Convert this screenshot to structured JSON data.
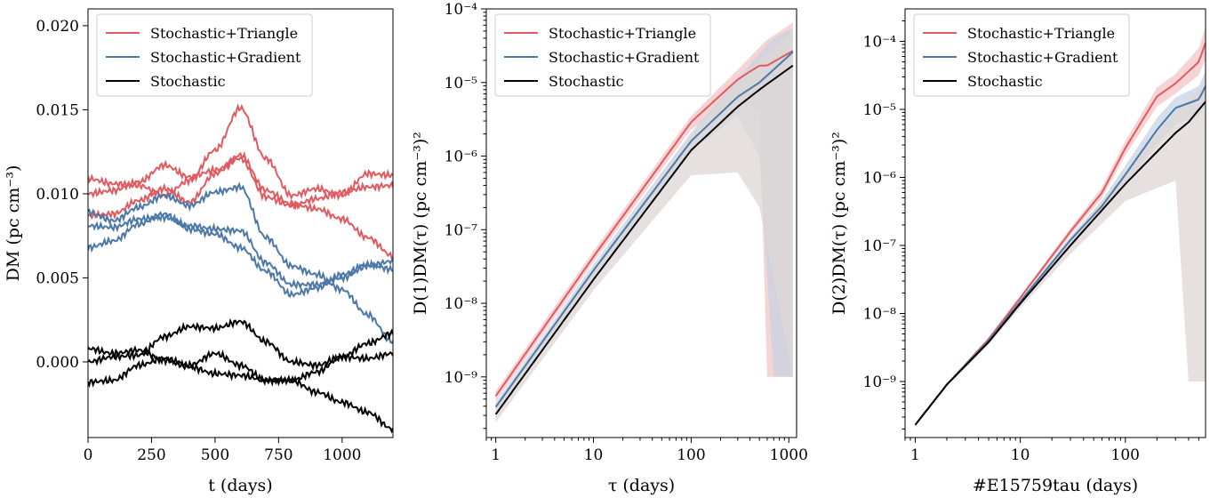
{
  "chart_data": [
    {
      "type": "line",
      "xlabel": "t (days)",
      "ylabel": "DM (pc cm⁻³)",
      "xlim": [
        0,
        1200
      ],
      "ylim": [
        -0.0045,
        0.021
      ],
      "xticks": [
        "0",
        "250",
        "500",
        "750",
        "1000"
      ],
      "yticks": [
        "0.000",
        "0.005",
        "0.010",
        "0.015",
        "0.020"
      ],
      "legend": {
        "position": "top-left",
        "entries": [
          "Stochastic+Triangle",
          "Stochastic+Gradient",
          "Stochastic"
        ]
      },
      "series": [
        {
          "name": "Stochastic+Triangle",
          "color": "#e05a5f",
          "x": [
            0,
            100,
            200,
            300,
            400,
            500,
            600,
            700,
            800,
            900,
            1000,
            1100,
            1200
          ],
          "values": [
            0.0087,
            0.0088,
            0.0096,
            0.0103,
            0.0095,
            0.0112,
            0.0123,
            0.0102,
            0.0094,
            0.0091,
            0.0085,
            0.0074,
            0.0063
          ]
        },
        {
          "name": "Stochastic+Triangle",
          "color": "#e05a5f",
          "x": [
            0,
            100,
            200,
            300,
            400,
            500,
            600,
            700,
            800,
            900,
            1000,
            1100,
            1200
          ],
          "values": [
            0.0109,
            0.0106,
            0.0105,
            0.0099,
            0.0108,
            0.0126,
            0.0151,
            0.0121,
            0.0099,
            0.0103,
            0.0099,
            0.0112,
            0.0111
          ]
        },
        {
          "name": "Stochastic+Triangle",
          "color": "#e05a5f",
          "x": [
            0,
            100,
            200,
            300,
            400,
            500,
            600,
            700,
            800,
            900,
            1000,
            1100,
            1200
          ],
          "values": [
            0.01,
            0.0102,
            0.0107,
            0.0117,
            0.011,
            0.0114,
            0.0121,
            0.0098,
            0.0093,
            0.0097,
            0.0101,
            0.0104,
            0.0105
          ]
        },
        {
          "name": "Stochastic+Gradient",
          "color": "#4c78a8",
          "x": [
            0,
            100,
            200,
            300,
            400,
            500,
            600,
            700,
            800,
            900,
            1000,
            1100,
            1200
          ],
          "values": [
            0.0089,
            0.0084,
            0.0092,
            0.0099,
            0.0093,
            0.0101,
            0.0104,
            0.0074,
            0.0057,
            0.0052,
            0.0043,
            0.0028,
            0.0012
          ]
        },
        {
          "name": "Stochastic+Gradient",
          "color": "#4c78a8",
          "x": [
            0,
            100,
            200,
            300,
            400,
            500,
            600,
            700,
            800,
            900,
            1000,
            1100,
            1200
          ],
          "values": [
            0.0081,
            0.008,
            0.0085,
            0.0086,
            0.0081,
            0.0079,
            0.0078,
            0.0059,
            0.0046,
            0.0046,
            0.005,
            0.0057,
            0.006
          ]
        },
        {
          "name": "Stochastic+Gradient",
          "color": "#4c78a8",
          "x": [
            0,
            100,
            200,
            300,
            400,
            500,
            600,
            700,
            800,
            900,
            1000,
            1100,
            1200
          ],
          "values": [
            0.0068,
            0.0072,
            0.0082,
            0.0088,
            0.0079,
            0.0076,
            0.0068,
            0.0054,
            0.004,
            0.0044,
            0.0052,
            0.0058,
            0.0055
          ]
        },
        {
          "name": "Stochastic",
          "color": "#000000",
          "x": [
            0,
            100,
            200,
            300,
            400,
            500,
            600,
            700,
            800,
            900,
            1000,
            1100,
            1200
          ],
          "values": [
            0.0008,
            0.0005,
            0.0007,
            0.0001,
            -0.0003,
            -0.0007,
            -0.0008,
            -0.0011,
            -0.0011,
            -0.0018,
            -0.0024,
            -0.003,
            -0.004
          ]
        },
        {
          "name": "Stochastic",
          "color": "#000000",
          "x": [
            0,
            100,
            200,
            300,
            400,
            500,
            600,
            700,
            800,
            900,
            1000,
            1100,
            1200
          ],
          "values": [
            -0.0012,
            -0.0011,
            -0.0002,
            0.0002,
            -0.0002,
            0.0005,
            -0.0002,
            -0.0011,
            -0.0011,
            -0.0006,
            0.0003,
            0.0011,
            0.0017
          ]
        },
        {
          "name": "Stochastic",
          "color": "#000000",
          "x": [
            0,
            100,
            200,
            300,
            400,
            500,
            600,
            700,
            800,
            900,
            1000,
            1100,
            1200
          ],
          "values": [
            0.0,
            0.0003,
            0.0004,
            0.0015,
            0.0021,
            0.002,
            0.0024,
            0.0012,
            0.0,
            -0.0002,
            0.0003,
            0.0002,
            0.0005
          ]
        }
      ]
    },
    {
      "type": "line",
      "xlabel": "τ (days)",
      "ylabel": "D(1)DM(τ) (pc cm⁻³)²",
      "xscale": "log",
      "yscale": "log",
      "xlim": [
        0.8,
        1200
      ],
      "ylim": [
        1.5e-10,
        0.0001
      ],
      "xticks": [
        "1",
        "10",
        "100",
        "1000"
      ],
      "yticks": [
        "10⁻⁹",
        "10⁻⁸",
        "10⁻⁷",
        "10⁻⁶",
        "10⁻⁵",
        "10⁻⁴"
      ],
      "legend": {
        "position": "top-left",
        "entries": [
          "Stochastic+Triangle",
          "Stochastic+Gradient",
          "Stochastic"
        ]
      },
      "series": [
        {
          "name": "Stochastic+Triangle",
          "color": "#e05a5f",
          "band": "#f3c4c6",
          "x": [
            1,
            10,
            100,
            300,
            500,
            600,
            1100
          ],
          "values": [
            5.5e-10,
            4.3e-08,
            2.9e-06,
            1.1e-05,
            1.7e-05,
            1.7e-05,
            2.7e-05
          ],
          "lower": [
            4.6e-10,
            3.6e-08,
            2.3e-06,
            6e-06,
            4e-06,
            1e-09,
            1e-09
          ],
          "upper": [
            6.4e-10,
            5.1e-08,
            3.5e-06,
            1.5e-05,
            3e-05,
            3.8e-05,
            6.5e-05
          ]
        },
        {
          "name": "Stochastic+Gradient",
          "color": "#4c78a8",
          "band": "#c7d3e4",
          "x": [
            1,
            10,
            100,
            300,
            500,
            700,
            1100
          ],
          "values": [
            3.9e-10,
            2.8e-08,
            1.6e-06,
            6.4e-06,
            1e-05,
            1.5e-05,
            2.6e-05
          ],
          "lower": [
            3.4e-10,
            2.3e-08,
            1.2e-06,
            3.5e-06,
            1e-06,
            1e-09,
            1e-09
          ],
          "upper": [
            4.5e-10,
            3.4e-08,
            2.1e-06,
            1.1e-05,
            2.5e-05,
            4e-05,
            5.5e-05
          ]
        },
        {
          "name": "Stochastic",
          "color": "#000000",
          "band": "#ddd7d6",
          "x": [
            1,
            10,
            100,
            300,
            500,
            1100
          ],
          "values": [
            3.1e-10,
            2.1e-08,
            1.2e-06,
            4.7e-06,
            8e-06,
            1.7e-05
          ],
          "lower": [
            2.4e-10,
            1.5e-08,
            5.5e-07,
            6e-07,
            2e-07,
            1e-09
          ],
          "upper": [
            3.9e-10,
            2.8e-08,
            2e-06,
            1e-05,
            2e-05,
            5e-05
          ]
        }
      ]
    },
    {
      "type": "line",
      "xlabel": "#E15759tau (days)",
      "ylabel": "D(2)DM(τ) (pc cm⁻³)²",
      "xscale": "log",
      "yscale": "log",
      "xlim": [
        0.8,
        580
      ],
      "ylim": [
        1.5e-10,
        0.0003
      ],
      "xticks": [
        "1",
        "10",
        "100"
      ],
      "yticks": [
        "10⁻⁹",
        "10⁻⁸",
        "10⁻⁷",
        "10⁻⁶",
        "10⁻⁵",
        "10⁻⁴"
      ],
      "legend": {
        "position": "top-left",
        "entries": [
          "Stochastic+Triangle",
          "Stochastic+Gradient",
          "Stochastic"
        ]
      },
      "series": [
        {
          "name": "Stochastic+Triangle",
          "color": "#e05a5f",
          "band": "#f3c4c6",
          "x": [
            1,
            2,
            5,
            10,
            30,
            60,
            100,
            200,
            300,
            500,
            580
          ],
          "values": [
            2.3e-10,
            9e-10,
            4.2e-09,
            1.7e-08,
            1.6e-07,
            6e-07,
            2.7e-06,
            1.55e-05,
            2.4e-05,
            5e-05,
            9.5e-05
          ],
          "lower": [
            2.2e-10,
            8.7e-10,
            4e-09,
            1.6e-08,
            1.4e-07,
            5e-07,
            2.1e-06,
            1.1e-05,
            1.7e-05,
            3.2e-05,
            5.5e-05
          ],
          "upper": [
            2.4e-10,
            9.3e-10,
            4.4e-09,
            1.8e-08,
            1.8e-07,
            7.2e-07,
            3.4e-06,
            2.1e-05,
            3.3e-05,
            8e-05,
            0.00016
          ]
        },
        {
          "name": "Stochastic+Gradient",
          "color": "#4c78a8",
          "band": "#c7d3e4",
          "x": [
            1,
            2,
            5,
            10,
            30,
            60,
            100,
            200,
            300,
            500,
            580
          ],
          "values": [
            2.3e-10,
            9e-10,
            4e-09,
            1.5e-08,
            1.2e-07,
            3.8e-07,
            1.1e-06,
            5e-06,
            1.05e-05,
            1.4e-05,
            2.2e-05
          ],
          "lower": [
            2.2e-10,
            8.6e-10,
            3.8e-09,
            1.4e-08,
            1.05e-07,
            3.1e-07,
            7.5e-07,
            3e-06,
            6e-06,
            8e-06,
            1.2e-05
          ],
          "upper": [
            2.4e-10,
            9.4e-10,
            4.2e-09,
            1.6e-08,
            1.35e-07,
            4.6e-07,
            1.5e-06,
            7.5e-06,
            1.5e-05,
            2.2e-05,
            3.6e-05
          ]
        },
        {
          "name": "Stochastic",
          "color": "#000000",
          "band": "#ddd7d6",
          "x": [
            1,
            2,
            5,
            10,
            30,
            100,
            300,
            400,
            580
          ],
          "values": [
            2.3e-10,
            9e-10,
            3.8e-09,
            1.4e-08,
            1e-07,
            8e-07,
            4.5e-06,
            6.5e-06,
            1.3e-05
          ],
          "lower": [
            2.2e-10,
            8.5e-10,
            3.5e-09,
            1.2e-08,
            7.5e-08,
            4.5e-07,
            9e-07,
            1e-09,
            1e-09
          ],
          "upper": [
            2.4e-10,
            9.5e-10,
            4.1e-09,
            1.6e-08,
            1.25e-07,
            1.2e-06,
            9e-06,
            1.4e-05,
            2.6e-05
          ]
        }
      ]
    }
  ]
}
